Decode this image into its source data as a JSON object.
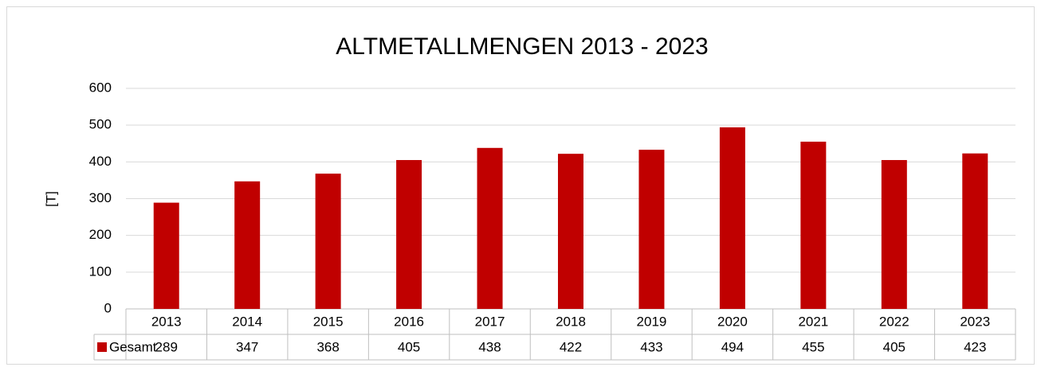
{
  "chart_data": {
    "type": "bar",
    "title": "ALTMETALLMENGEN 2013 - 2023",
    "y_label": "[T]",
    "categories": [
      "2013",
      "2014",
      "2015",
      "2016",
      "2017",
      "2018",
      "2019",
      "2020",
      "2021",
      "2022",
      "2023"
    ],
    "series": [
      {
        "name": "Gesamt",
        "color": "#c00000",
        "values": [
          289,
          347,
          368,
          405,
          438,
          422,
          433,
          494,
          455,
          405,
          423
        ]
      }
    ],
    "ylim": [
      0,
      600
    ],
    "yticks": [
      0,
      100,
      200,
      300,
      400,
      500,
      600
    ],
    "grid": true,
    "data_table": true
  }
}
